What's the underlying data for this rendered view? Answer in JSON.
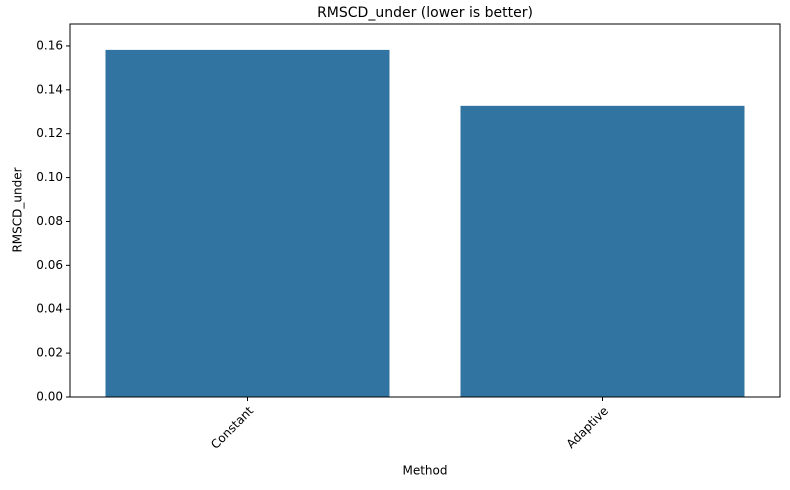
{
  "chart_data": {
    "type": "bar",
    "title": "RMSCD_under (lower is better)",
    "x_label": "Method",
    "y_label": "RMSCD_under",
    "categories": [
      "Constant",
      "Adaptive"
    ],
    "values": [
      0.1582,
      0.1327
    ],
    "color": "#3274a1",
    "ylim": [
      0,
      0.17
    ],
    "yticks": [
      {
        "value": 0,
        "label": "0.00"
      },
      {
        "value": 0.02,
        "label": "0.02"
      },
      {
        "value": 0.04,
        "label": "0.04"
      },
      {
        "value": 0.06,
        "label": "0.06"
      },
      {
        "value": 0.08,
        "label": "0.08"
      },
      {
        "value": 0.1,
        "label": "0.10"
      },
      {
        "value": 0.12,
        "label": "0.12"
      },
      {
        "value": 0.14,
        "label": "0.14"
      },
      {
        "value": 0.16,
        "label": "0.16"
      }
    ]
  }
}
